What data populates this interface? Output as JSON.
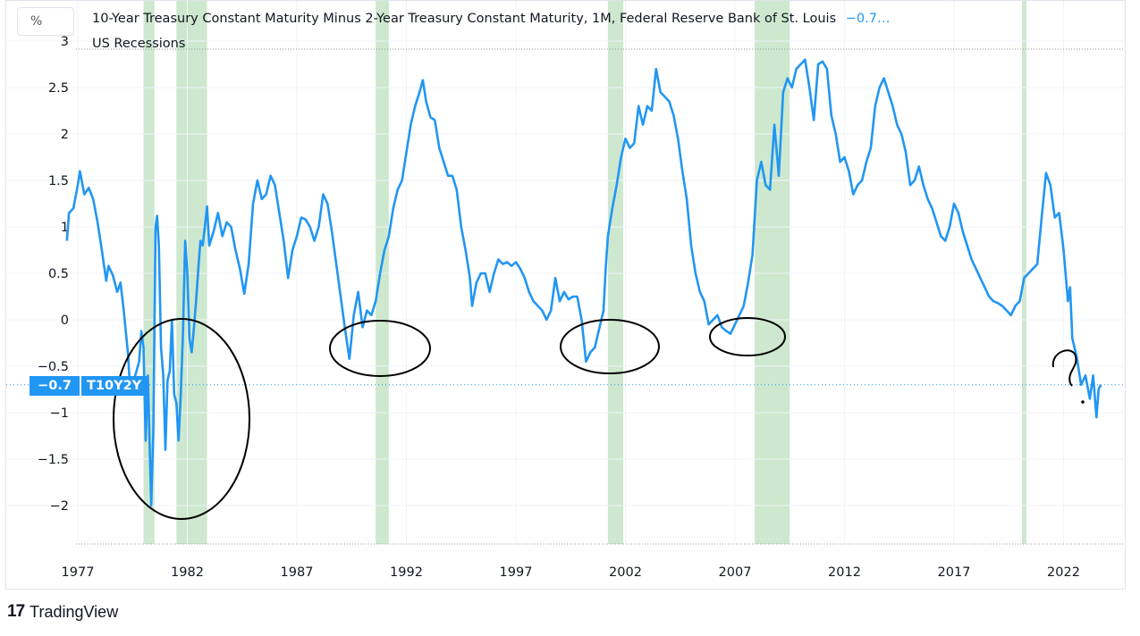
{
  "header": {
    "unit_button": "%",
    "title": "10-Year Treasury Constant Maturity Minus 2-Year Treasury Constant Maturity, 1M, Federal Reserve Bank of St. Louis",
    "last_value": "−0.7…",
    "recessions_label": "US Recessions"
  },
  "price_label": {
    "value": "−0.7",
    "symbol": "T10Y2Y"
  },
  "branding": {
    "logo": "17",
    "name": "TradingView"
  },
  "colors": {
    "line": "#2196f3",
    "recession": "#c8e6c9",
    "annotation": "#000000",
    "grid": "#f0f3fa"
  },
  "chart_data": {
    "type": "line",
    "title": "10-Year Treasury Constant Maturity Minus 2-Year Treasury Constant Maturity, 1M, Federal Reserve Bank of St. Louis",
    "ylabel": "%",
    "ylim": [
      -2.4,
      3.0
    ],
    "xlim": [
      1976.5,
      2024.0
    ],
    "y_ticks": [
      "3",
      "2.5",
      "2",
      "1.5",
      "1",
      "0.5",
      "0",
      "−0.5",
      "−1",
      "−1.5",
      "−2"
    ],
    "y_tick_values": [
      3,
      2.5,
      2,
      1.5,
      1,
      0.5,
      0,
      -0.5,
      -1,
      -1.5,
      -2
    ],
    "x_ticks": [
      "1977",
      "1982",
      "1987",
      "1992",
      "1997",
      "2002",
      "2007",
      "2012",
      "2017",
      "2022"
    ],
    "x_tick_values": [
      1977,
      1982,
      1987,
      1992,
      1997,
      2002,
      2007,
      2012,
      2017,
      2022
    ],
    "last_value": -0.7,
    "grid": true,
    "recessions": [
      [
        1980.0,
        1980.5
      ],
      [
        1981.5,
        1982.9
      ],
      [
        1990.6,
        1991.2
      ],
      [
        2001.2,
        2001.9
      ],
      [
        2007.9,
        2009.5
      ],
      [
        2020.1,
        2020.3
      ]
    ],
    "series": [
      {
        "name": "T10Y2Y",
        "points": [
          [
            1976.5,
            0.85
          ],
          [
            1976.6,
            1.15
          ],
          [
            1976.8,
            1.2
          ],
          [
            1977.0,
            1.45
          ],
          [
            1977.1,
            1.6
          ],
          [
            1977.3,
            1.35
          ],
          [
            1977.5,
            1.42
          ],
          [
            1977.7,
            1.3
          ],
          [
            1977.9,
            1.05
          ],
          [
            1978.1,
            0.75
          ],
          [
            1978.3,
            0.42
          ],
          [
            1978.4,
            0.58
          ],
          [
            1978.6,
            0.48
          ],
          [
            1978.8,
            0.3
          ],
          [
            1978.95,
            0.4
          ],
          [
            1979.1,
            0.1
          ],
          [
            1979.3,
            -0.38
          ],
          [
            1979.4,
            -0.8
          ],
          [
            1979.6,
            -0.62
          ],
          [
            1979.8,
            -0.45
          ],
          [
            1979.9,
            -0.12
          ],
          [
            1980.0,
            -0.3
          ],
          [
            1980.1,
            -1.3
          ],
          [
            1980.2,
            -0.6
          ],
          [
            1980.3,
            -1.5
          ],
          [
            1980.35,
            -2.0
          ],
          [
            1980.45,
            -1.2
          ],
          [
            1980.55,
            1.0
          ],
          [
            1980.62,
            1.12
          ],
          [
            1980.7,
            0.8
          ],
          [
            1980.8,
            -0.3
          ],
          [
            1980.9,
            -0.6
          ],
          [
            1981.0,
            -1.4
          ],
          [
            1981.1,
            -0.65
          ],
          [
            1981.2,
            -0.55
          ],
          [
            1981.3,
            0.0
          ],
          [
            1981.4,
            -0.8
          ],
          [
            1981.5,
            -0.9
          ],
          [
            1981.6,
            -1.3
          ],
          [
            1981.7,
            -0.8
          ],
          [
            1981.8,
            -0.15
          ],
          [
            1981.9,
            0.85
          ],
          [
            1982.0,
            0.5
          ],
          [
            1982.1,
            -0.2
          ],
          [
            1982.2,
            -0.35
          ],
          [
            1982.3,
            -0.1
          ],
          [
            1982.4,
            0.2
          ],
          [
            1982.5,
            0.55
          ],
          [
            1982.6,
            0.85
          ],
          [
            1982.7,
            0.8
          ],
          [
            1982.8,
            1.0
          ],
          [
            1982.9,
            1.22
          ],
          [
            1983.0,
            0.8
          ],
          [
            1983.2,
            0.95
          ],
          [
            1983.4,
            1.15
          ],
          [
            1983.6,
            0.9
          ],
          [
            1983.8,
            1.05
          ],
          [
            1984.0,
            1.0
          ],
          [
            1984.2,
            0.75
          ],
          [
            1984.4,
            0.55
          ],
          [
            1984.6,
            0.28
          ],
          [
            1984.8,
            0.6
          ],
          [
            1985.0,
            1.25
          ],
          [
            1985.2,
            1.5
          ],
          [
            1985.4,
            1.3
          ],
          [
            1985.6,
            1.35
          ],
          [
            1985.8,
            1.55
          ],
          [
            1986.0,
            1.45
          ],
          [
            1986.2,
            1.15
          ],
          [
            1986.4,
            0.85
          ],
          [
            1986.6,
            0.45
          ],
          [
            1986.8,
            0.75
          ],
          [
            1987.0,
            0.9
          ],
          [
            1987.2,
            1.1
          ],
          [
            1987.4,
            1.08
          ],
          [
            1987.6,
            1.0
          ],
          [
            1987.8,
            0.85
          ],
          [
            1988.0,
            1.0
          ],
          [
            1988.2,
            1.35
          ],
          [
            1988.4,
            1.25
          ],
          [
            1988.6,
            0.95
          ],
          [
            1988.8,
            0.6
          ],
          [
            1989.0,
            0.25
          ],
          [
            1989.2,
            -0.1
          ],
          [
            1989.4,
            -0.42
          ],
          [
            1989.6,
            0.05
          ],
          [
            1989.8,
            0.3
          ],
          [
            1990.0,
            -0.08
          ],
          [
            1990.2,
            0.1
          ],
          [
            1990.4,
            0.05
          ],
          [
            1990.6,
            0.2
          ],
          [
            1990.8,
            0.5
          ],
          [
            1991.0,
            0.75
          ],
          [
            1991.2,
            0.9
          ],
          [
            1991.4,
            1.2
          ],
          [
            1991.6,
            1.4
          ],
          [
            1991.8,
            1.5
          ],
          [
            1992.0,
            1.8
          ],
          [
            1992.2,
            2.1
          ],
          [
            1992.4,
            2.3
          ],
          [
            1992.6,
            2.45
          ],
          [
            1992.75,
            2.58
          ],
          [
            1992.9,
            2.35
          ],
          [
            1993.1,
            2.18
          ],
          [
            1993.3,
            2.15
          ],
          [
            1993.5,
            1.85
          ],
          [
            1993.7,
            1.7
          ],
          [
            1993.9,
            1.55
          ],
          [
            1994.1,
            1.55
          ],
          [
            1994.3,
            1.4
          ],
          [
            1994.5,
            1.0
          ],
          [
            1994.7,
            0.75
          ],
          [
            1994.9,
            0.45
          ],
          [
            1995.0,
            0.15
          ],
          [
            1995.2,
            0.4
          ],
          [
            1995.4,
            0.5
          ],
          [
            1995.6,
            0.5
          ],
          [
            1995.8,
            0.3
          ],
          [
            1996.0,
            0.5
          ],
          [
            1996.2,
            0.65
          ],
          [
            1996.4,
            0.6
          ],
          [
            1996.6,
            0.62
          ],
          [
            1996.8,
            0.58
          ],
          [
            1997.0,
            0.62
          ],
          [
            1997.2,
            0.55
          ],
          [
            1997.4,
            0.45
          ],
          [
            1997.6,
            0.3
          ],
          [
            1997.8,
            0.2
          ],
          [
            1998.0,
            0.15
          ],
          [
            1998.2,
            0.1
          ],
          [
            1998.4,
            0.0
          ],
          [
            1998.6,
            0.1
          ],
          [
            1998.8,
            0.45
          ],
          [
            1999.0,
            0.2
          ],
          [
            1999.2,
            0.3
          ],
          [
            1999.4,
            0.22
          ],
          [
            1999.6,
            0.25
          ],
          [
            1999.8,
            0.25
          ],
          [
            2000.0,
            0.0
          ],
          [
            2000.2,
            -0.45
          ],
          [
            2000.4,
            -0.35
          ],
          [
            2000.6,
            -0.3
          ],
          [
            2000.8,
            -0.1
          ],
          [
            2001.0,
            0.1
          ],
          [
            2001.1,
            0.55
          ],
          [
            2001.2,
            0.9
          ],
          [
            2001.4,
            1.2
          ],
          [
            2001.6,
            1.45
          ],
          [
            2001.8,
            1.75
          ],
          [
            2002.0,
            1.95
          ],
          [
            2002.2,
            1.85
          ],
          [
            2002.4,
            1.9
          ],
          [
            2002.6,
            2.3
          ],
          [
            2002.8,
            2.1
          ],
          [
            2003.0,
            2.3
          ],
          [
            2003.2,
            2.25
          ],
          [
            2003.4,
            2.7
          ],
          [
            2003.6,
            2.45
          ],
          [
            2003.8,
            2.4
          ],
          [
            2004.0,
            2.35
          ],
          [
            2004.2,
            2.2
          ],
          [
            2004.4,
            1.95
          ],
          [
            2004.6,
            1.6
          ],
          [
            2004.8,
            1.3
          ],
          [
            2005.0,
            0.8
          ],
          [
            2005.2,
            0.5
          ],
          [
            2005.4,
            0.3
          ],
          [
            2005.6,
            0.2
          ],
          [
            2005.8,
            -0.05
          ],
          [
            2006.0,
            0.0
          ],
          [
            2006.2,
            0.05
          ],
          [
            2006.4,
            -0.08
          ],
          [
            2006.6,
            -0.12
          ],
          [
            2006.8,
            -0.15
          ],
          [
            2007.0,
            -0.05
          ],
          [
            2007.2,
            0.05
          ],
          [
            2007.4,
            0.15
          ],
          [
            2007.6,
            0.4
          ],
          [
            2007.8,
            0.7
          ],
          [
            2008.0,
            1.5
          ],
          [
            2008.2,
            1.7
          ],
          [
            2008.4,
            1.45
          ],
          [
            2008.6,
            1.4
          ],
          [
            2008.8,
            2.1
          ],
          [
            2009.0,
            1.55
          ],
          [
            2009.2,
            2.45
          ],
          [
            2009.4,
            2.6
          ],
          [
            2009.6,
            2.5
          ],
          [
            2009.8,
            2.7
          ],
          [
            2010.0,
            2.75
          ],
          [
            2010.2,
            2.8
          ],
          [
            2010.4,
            2.5
          ],
          [
            2010.6,
            2.15
          ],
          [
            2010.8,
            2.75
          ],
          [
            2011.0,
            2.78
          ],
          [
            2011.2,
            2.7
          ],
          [
            2011.4,
            2.2
          ],
          [
            2011.6,
            2.0
          ],
          [
            2011.8,
            1.7
          ],
          [
            2012.0,
            1.75
          ],
          [
            2012.2,
            1.6
          ],
          [
            2012.4,
            1.35
          ],
          [
            2012.6,
            1.45
          ],
          [
            2012.8,
            1.5
          ],
          [
            2013.0,
            1.7
          ],
          [
            2013.2,
            1.85
          ],
          [
            2013.4,
            2.3
          ],
          [
            2013.6,
            2.5
          ],
          [
            2013.8,
            2.6
          ],
          [
            2014.0,
            2.45
          ],
          [
            2014.2,
            2.3
          ],
          [
            2014.4,
            2.1
          ],
          [
            2014.6,
            2.0
          ],
          [
            2014.8,
            1.8
          ],
          [
            2015.0,
            1.45
          ],
          [
            2015.2,
            1.5
          ],
          [
            2015.4,
            1.65
          ],
          [
            2015.6,
            1.45
          ],
          [
            2015.8,
            1.3
          ],
          [
            2016.0,
            1.2
          ],
          [
            2016.2,
            1.05
          ],
          [
            2016.4,
            0.9
          ],
          [
            2016.6,
            0.85
          ],
          [
            2016.8,
            1.0
          ],
          [
            2017.0,
            1.25
          ],
          [
            2017.2,
            1.15
          ],
          [
            2017.4,
            0.95
          ],
          [
            2017.6,
            0.8
          ],
          [
            2017.8,
            0.65
          ],
          [
            2018.0,
            0.55
          ],
          [
            2018.2,
            0.45
          ],
          [
            2018.4,
            0.35
          ],
          [
            2018.6,
            0.25
          ],
          [
            2018.8,
            0.2
          ],
          [
            2019.0,
            0.18
          ],
          [
            2019.2,
            0.15
          ],
          [
            2019.4,
            0.1
          ],
          [
            2019.6,
            0.05
          ],
          [
            2019.8,
            0.15
          ],
          [
            2020.0,
            0.2
          ],
          [
            2020.2,
            0.45
          ],
          [
            2020.4,
            0.5
          ],
          [
            2020.6,
            0.55
          ],
          [
            2020.8,
            0.6
          ],
          [
            2021.0,
            1.1
          ],
          [
            2021.2,
            1.58
          ],
          [
            2021.4,
            1.45
          ],
          [
            2021.6,
            1.1
          ],
          [
            2021.8,
            1.15
          ],
          [
            2022.0,
            0.75
          ],
          [
            2022.2,
            0.2
          ],
          [
            2022.3,
            0.35
          ],
          [
            2022.4,
            -0.2
          ],
          [
            2022.6,
            -0.4
          ],
          [
            2022.8,
            -0.7
          ],
          [
            2023.0,
            -0.6
          ],
          [
            2023.2,
            -0.85
          ],
          [
            2023.35,
            -0.6
          ],
          [
            2023.5,
            -1.05
          ],
          [
            2023.6,
            -0.75
          ],
          [
            2023.7,
            -0.7
          ]
        ]
      }
    ]
  }
}
